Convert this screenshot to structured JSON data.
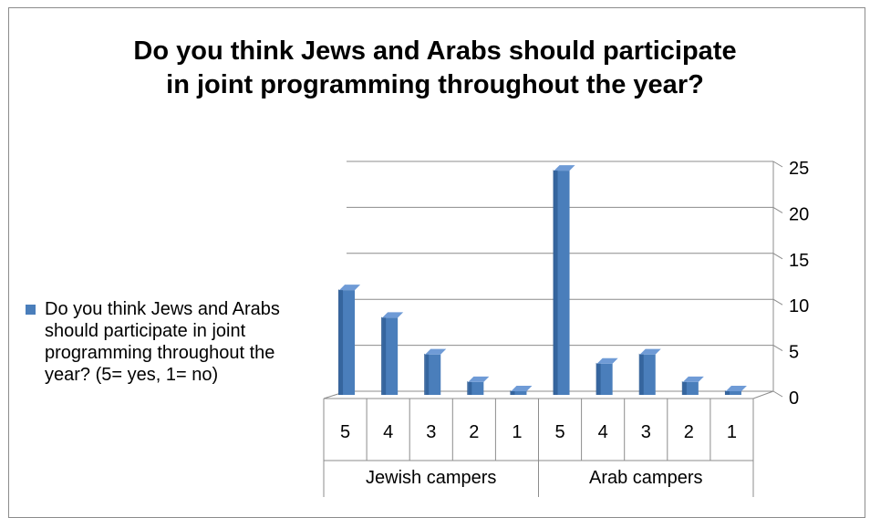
{
  "chart_data": {
    "type": "bar",
    "title": "Do you think Jews and Arabs should participate in joint programming throughout the year?",
    "title_lines": [
      "Do you think Jews and Arabs should participate",
      "in joint programming throughout the year?"
    ],
    "groups": [
      "Jewish campers",
      "Arab campers"
    ],
    "categories": [
      "5",
      "4",
      "3",
      "2",
      "1",
      "5",
      "4",
      "3",
      "2",
      "1"
    ],
    "series": [
      {
        "name": "Do you think Jews and Arabs should participate in joint programming throughout the year? (5= yes, 1= no)",
        "color": "#4a7ebb",
        "values": [
          11,
          8,
          4,
          1,
          0,
          24,
          3,
          4,
          1,
          0
        ]
      }
    ],
    "yticks": [
      0,
      5,
      10,
      15,
      20,
      25
    ],
    "ylim": [
      0,
      25
    ],
    "grid": true,
    "legend": "left",
    "style": "3d-column"
  }
}
